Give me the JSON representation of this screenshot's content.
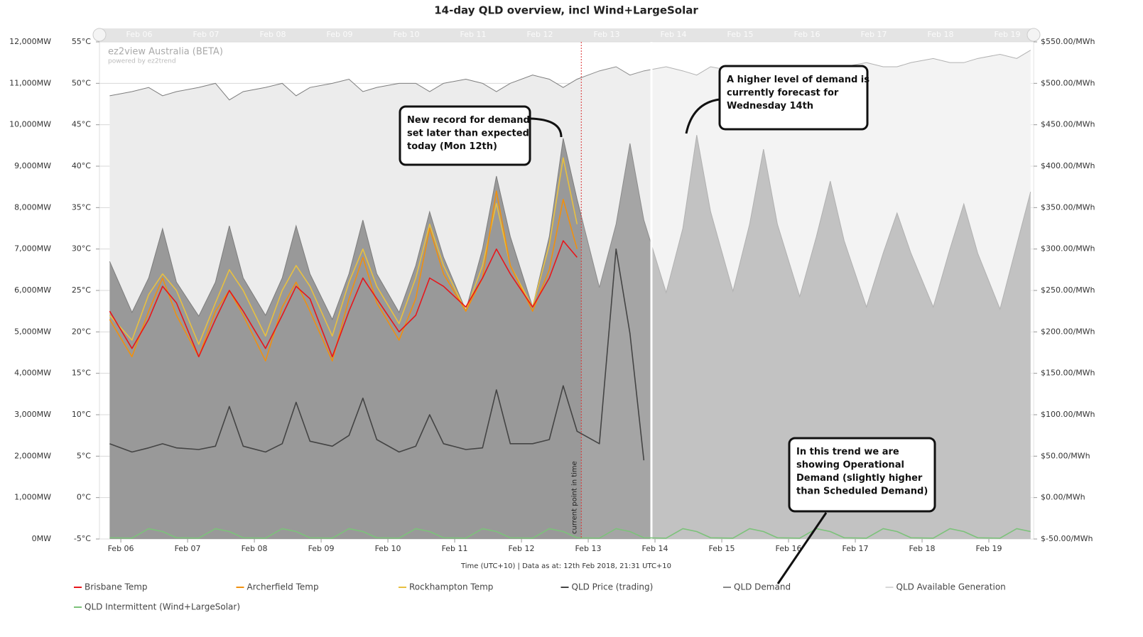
{
  "chart_data": {
    "type": "line",
    "title": "14-day QLD overview, incl Wind+LargeSolar",
    "xlabel": "Time (UTC+10) | Data as at: 12th Feb 2018, 21:31 UTC+10",
    "watermark": "ez2view Australia (BETA)",
    "watermark_sub": "powered by ez2trend",
    "grid": true,
    "xlim": [
      -0.32,
      13.67
    ],
    "xticks": [
      {
        "value": 0,
        "label": "Feb 06"
      },
      {
        "value": 1,
        "label": "Feb 07"
      },
      {
        "value": 2,
        "label": "Feb 08"
      },
      {
        "value": 3,
        "label": "Feb 09"
      },
      {
        "value": 4,
        "label": "Feb 10"
      },
      {
        "value": 5,
        "label": "Feb 11"
      },
      {
        "value": 6,
        "label": "Feb 12"
      },
      {
        "value": 7,
        "label": "Feb 13"
      },
      {
        "value": 8,
        "label": "Feb 14"
      },
      {
        "value": 9,
        "label": "Feb 15"
      },
      {
        "value": 10,
        "label": "Feb 16"
      },
      {
        "value": 11,
        "label": "Feb 17"
      },
      {
        "value": 12,
        "label": "Feb 18"
      },
      {
        "value": 13,
        "label": "Feb 19"
      }
    ],
    "ylim": [
      0,
      12000
    ],
    "yticks": [
      {
        "value": 0,
        "label": "0MW"
      },
      {
        "value": 1000,
        "label": "1,000MW"
      },
      {
        "value": 2000,
        "label": "2,000MW"
      },
      {
        "value": 3000,
        "label": "3,000MW"
      },
      {
        "value": 4000,
        "label": "4,000MW"
      },
      {
        "value": 5000,
        "label": "5,000MW"
      },
      {
        "value": 6000,
        "label": "6,000MW"
      },
      {
        "value": 7000,
        "label": "7,000MW"
      },
      {
        "value": 8000,
        "label": "8,000MW"
      },
      {
        "value": 9000,
        "label": "9,000MW"
      },
      {
        "value": 10000,
        "label": "10,000MW"
      },
      {
        "value": 11000,
        "label": "11,000MW"
      },
      {
        "value": 12000,
        "label": "12,000MW"
      }
    ],
    "y2lim": [
      -5,
      55
    ],
    "y2ticks": [
      {
        "value": -5,
        "label": "-5°C"
      },
      {
        "value": 0,
        "label": "0°C"
      },
      {
        "value": 5,
        "label": "5°C"
      },
      {
        "value": 10,
        "label": "10°C"
      },
      {
        "value": 15,
        "label": "15°C"
      },
      {
        "value": 20,
        "label": "20°C"
      },
      {
        "value": 25,
        "label": "25°C"
      },
      {
        "value": 30,
        "label": "30°C"
      },
      {
        "value": 35,
        "label": "35°C"
      },
      {
        "value": 40,
        "label": "40°C"
      },
      {
        "value": 45,
        "label": "45°C"
      },
      {
        "value": 50,
        "label": "50°C"
      },
      {
        "value": 55,
        "label": "55°C"
      }
    ],
    "y3lim": [
      -50,
      550
    ],
    "y3ticks": [
      {
        "value": -50,
        "label": "$-50.00/MWh"
      },
      {
        "value": 0,
        "label": "$0.00/MWh"
      },
      {
        "value": 50,
        "label": "$50.00/MWh"
      },
      {
        "value": 100,
        "label": "$100.00/MWh"
      },
      {
        "value": 150,
        "label": "$150.00/MWh"
      },
      {
        "value": 200,
        "label": "$200.00/MWh"
      },
      {
        "value": 250,
        "label": "$250.00/MWh"
      },
      {
        "value": 300,
        "label": "$300.00/MWh"
      },
      {
        "value": 350,
        "label": "$350.00/MWh"
      },
      {
        "value": 400,
        "label": "$400.00/MWh"
      },
      {
        "value": 450,
        "label": "$450.00/MWh"
      },
      {
        "value": 500,
        "label": "$500.00/MWh"
      },
      {
        "value": 550,
        "label": "$550.00/MWh"
      }
    ],
    "x": [
      -0.167,
      0.167,
      0.417,
      0.625,
      0.833,
      1.167,
      1.417,
      1.625,
      1.833,
      2.167,
      2.417,
      2.625,
      2.833,
      3.167,
      3.417,
      3.625,
      3.833,
      4.167,
      4.417,
      4.625,
      4.833,
      5.167,
      5.417,
      5.625,
      5.833,
      6.167,
      6.417,
      6.625,
      6.833,
      7.167,
      7.417,
      7.625,
      7.833,
      8.167,
      8.417,
      8.625,
      8.833,
      9.167,
      9.417,
      9.625,
      9.833,
      10.167,
      10.417,
      10.625,
      10.833,
      11.167,
      11.417,
      11.625,
      11.833,
      12.167,
      12.417,
      12.625,
      12.833,
      13.167,
      13.417,
      13.625
    ],
    "series": [
      {
        "name": "Brisbane Temp",
        "kind": "line",
        "axis": "y2",
        "color": "#e8161b",
        "values": [
          22.5,
          18.0,
          21.5,
          25.5,
          23.5,
          17.0,
          21.5,
          25.0,
          22.5,
          18.0,
          22.0,
          25.5,
          24.0,
          17.0,
          22.5,
          26.5,
          24.0,
          20.0,
          22.0,
          26.5,
          25.5,
          23.0,
          26.5,
          30.0,
          27.0,
          23.0,
          26.5,
          31.0,
          29.0,
          null,
          null,
          null,
          null,
          null,
          null,
          null,
          null,
          null,
          null,
          null,
          null,
          null,
          null,
          null,
          null,
          null,
          null,
          null,
          null,
          null,
          null,
          null,
          null,
          null,
          null,
          null
        ]
      },
      {
        "name": "Archerfield Temp",
        "kind": "line",
        "axis": "y2",
        "color": "#f0900f",
        "values": [
          21.5,
          17.0,
          22.5,
          26.5,
          22.0,
          17.0,
          22.5,
          25.0,
          22.0,
          16.5,
          23.0,
          26.0,
          22.5,
          16.5,
          24.0,
          29.0,
          23.5,
          19.0,
          24.0,
          32.5,
          27.0,
          22.5,
          26.5,
          37.0,
          28.0,
          22.5,
          27.5,
          36.0,
          30.0,
          null,
          null,
          null,
          null,
          null,
          null,
          null,
          null,
          null,
          null,
          null,
          null,
          null,
          null,
          null,
          null,
          null,
          null,
          null,
          null,
          null,
          null,
          null,
          null,
          null,
          null,
          null
        ]
      },
      {
        "name": "Rockhampton Temp",
        "kind": "line",
        "axis": "y2",
        "color": "#e8c040",
        "values": [
          22.0,
          19.0,
          24.5,
          27.0,
          25.0,
          18.5,
          23.5,
          27.5,
          25.0,
          19.5,
          25.0,
          28.0,
          25.5,
          19.5,
          26.0,
          30.0,
          25.5,
          21.0,
          26.5,
          33.0,
          28.0,
          22.5,
          28.0,
          35.5,
          28.0,
          23.0,
          30.5,
          41.0,
          33.0,
          null,
          null,
          null,
          null,
          null,
          null,
          null,
          null,
          null,
          null,
          null,
          null,
          null,
          null,
          null,
          null,
          null,
          null,
          null,
          null,
          null,
          null,
          null,
          null,
          null,
          null,
          null
        ]
      },
      {
        "name": "QLD Price (trading)",
        "kind": "line",
        "axis": "y3",
        "color": "#444444",
        "values": [
          65,
          55,
          60,
          65,
          60,
          58,
          62,
          110,
          62,
          55,
          65,
          115,
          68,
          62,
          75,
          120,
          70,
          55,
          62,
          100,
          65,
          58,
          60,
          130,
          65,
          65,
          70,
          135,
          80,
          65,
          300,
          198,
          45,
          null,
          null,
          null,
          null,
          null,
          null,
          null,
          null,
          null,
          null,
          null,
          null,
          null,
          null,
          null,
          null,
          null,
          null,
          null,
          null,
          null,
          null,
          null
        ]
      },
      {
        "name": "QLD Demand",
        "kind": "area",
        "color": "#999999",
        "values": [
          6700,
          5470,
          6300,
          7490,
          6200,
          5380,
          6200,
          7560,
          6300,
          5400,
          6300,
          7560,
          6400,
          5300,
          6400,
          7700,
          6400,
          5470,
          6600,
          7900,
          6800,
          5520,
          7000,
          8760,
          7300,
          5600,
          7300,
          9670,
          8200,
          6070,
          7600,
          9550,
          7700,
          5950,
          7500,
          9750,
          7900,
          5980,
          7600,
          9410,
          7600,
          5850,
          7300,
          8640,
          7200,
          5600,
          6900,
          7870,
          6900,
          5600,
          7000,
          8090,
          6900,
          5550,
          7100,
          8380
        ]
      },
      {
        "name": "QLD Available Generation",
        "kind": "area",
        "color": "#ececec",
        "values": [
          10700,
          10800,
          10900,
          10700,
          10800,
          10900,
          11000,
          10600,
          10800,
          10900,
          11000,
          10700,
          10900,
          11000,
          11100,
          10800,
          10900,
          11000,
          11000,
          10800,
          11000,
          11100,
          11000,
          10800,
          11000,
          11200,
          11100,
          10900,
          11100,
          11300,
          11400,
          11200,
          11300,
          11400,
          11300,
          11200,
          11400,
          11300,
          11400,
          11200,
          11300,
          11400,
          11300,
          11300,
          11400,
          11500,
          11400,
          11400,
          11500,
          11600,
          11500,
          11500,
          11600,
          11700,
          11600,
          11800
        ]
      },
      {
        "name": "QLD Intermittent (Wind+LargeSolar)",
        "kind": "line",
        "color": "#7cc27a",
        "values": [
          30,
          20,
          250,
          180,
          30,
          20,
          250,
          180,
          30,
          20,
          250,
          180,
          30,
          20,
          250,
          180,
          30,
          20,
          250,
          180,
          30,
          20,
          250,
          180,
          30,
          20,
          250,
          180,
          30,
          20,
          250,
          180,
          30,
          20,
          250,
          180,
          30,
          20,
          250,
          180,
          30,
          20,
          250,
          180,
          30,
          20,
          250,
          180,
          30,
          20,
          250,
          180,
          30,
          20,
          250,
          180
        ]
      }
    ],
    "markers": [
      {
        "x": 6.896,
        "label": "current point in time"
      }
    ],
    "annotations": [
      {
        "lines": [
          "New record for demand",
          "set later than expected",
          "today (Mon 12th)"
        ]
      },
      {
        "lines": [
          "A higher level of demand is",
          "currently forecast for",
          "Wednesday 14th"
        ]
      },
      {
        "lines": [
          "In this trend we are",
          "showing Operational",
          "Demand (slightly higher",
          "than Scheduled Demand)"
        ]
      }
    ]
  }
}
